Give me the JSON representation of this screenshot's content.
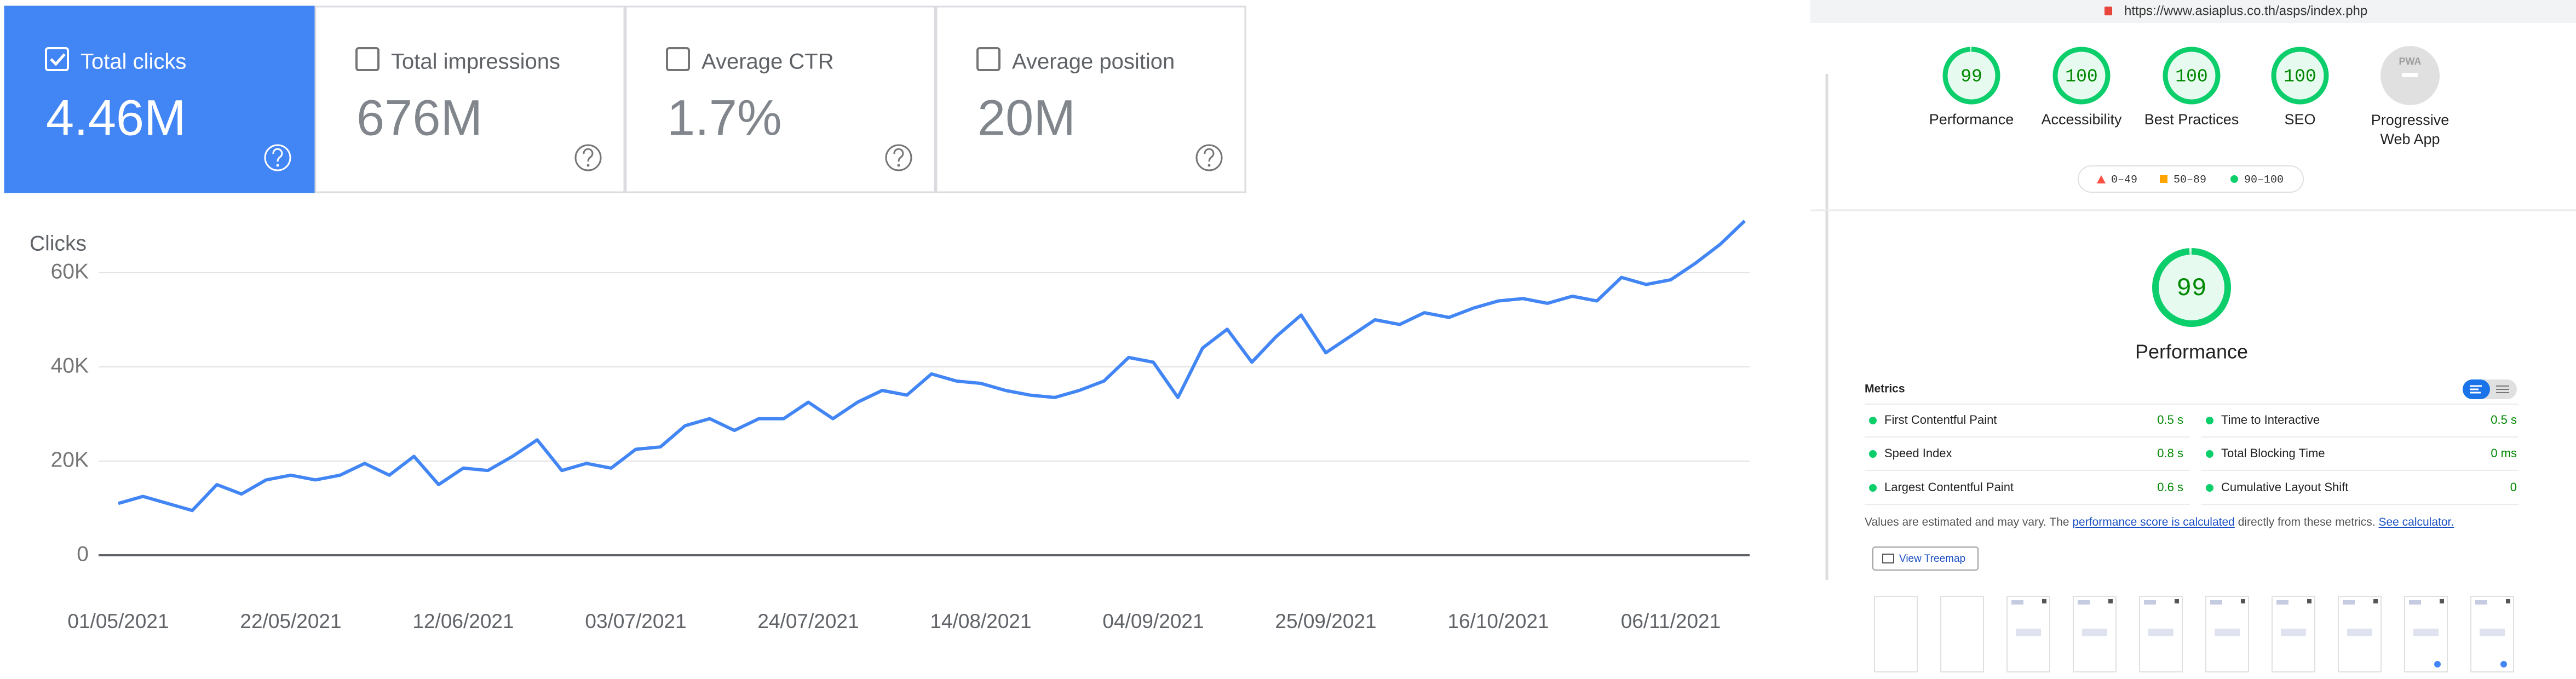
{
  "cards": [
    {
      "label": "Total clicks",
      "value": "4.46M",
      "selected": true
    },
    {
      "label": "Total impressions",
      "value": "676M",
      "selected": false
    },
    {
      "label": "Average CTR",
      "value": "1.7%",
      "selected": false
    },
    {
      "label": "Average position",
      "value": "20M",
      "selected": false
    }
  ],
  "chart": {
    "type": "line",
    "y_label": "Clicks",
    "color": "#4285f4",
    "grid": true,
    "x": [
      "01/05/2021",
      "04/05/2021",
      "07/05/2021",
      "10/05/2021",
      "13/05/2021",
      "16/05/2021",
      "19/05/2021",
      "22/05/2021",
      "25/05/2021",
      "28/05/2021",
      "31/05/2021",
      "03/06/2021",
      "06/06/2021",
      "09/06/2021",
      "12/06/2021",
      "15/06/2021",
      "18/06/2021",
      "21/06/2021",
      "24/06/2021",
      "27/06/2021",
      "30/06/2021",
      "03/07/2021",
      "06/07/2021",
      "09/07/2021",
      "12/07/2021",
      "15/07/2021",
      "18/07/2021",
      "21/07/2021",
      "24/07/2021",
      "27/07/2021",
      "30/07/2021",
      "02/08/2021",
      "05/08/2021",
      "08/08/2021",
      "11/08/2021",
      "14/08/2021",
      "17/08/2021",
      "20/08/2021",
      "23/08/2021",
      "26/08/2021",
      "29/08/2021",
      "01/09/2021",
      "04/09/2021",
      "07/09/2021",
      "10/09/2021",
      "13/09/2021",
      "16/09/2021",
      "19/09/2021",
      "22/09/2021",
      "25/09/2021",
      "28/09/2021",
      "01/10/2021",
      "04/10/2021",
      "07/10/2021",
      "10/10/2021",
      "13/10/2021",
      "16/10/2021",
      "19/10/2021",
      "22/10/2021",
      "25/10/2021",
      "28/10/2021",
      "31/10/2021",
      "03/11/2021",
      "06/11/2021",
      "09/11/2021",
      "12/11/2021",
      "15/11/2021"
    ],
    "values": [
      11000,
      12500,
      11000,
      9500,
      15000,
      13000,
      16000,
      17000,
      16000,
      17000,
      19500,
      17000,
      21000,
      15000,
      18500,
      18000,
      21000,
      24500,
      18000,
      19500,
      18500,
      22500,
      23000,
      27500,
      29000,
      26500,
      29000,
      29000,
      32500,
      29000,
      32500,
      35000,
      34000,
      38500,
      37000,
      36500,
      35000,
      34000,
      33500,
      35000,
      37000,
      42000,
      41000,
      33500,
      44000,
      48000,
      41000,
      46500,
      51000,
      43000,
      46500,
      50000,
      49000,
      51500,
      50500,
      52500,
      54000,
      54500,
      53500,
      55000,
      54000,
      59000,
      57500,
      58500,
      62000,
      66000,
      71000
    ],
    "ylim": [
      0,
      75000
    ],
    "yticks": [
      0,
      {
        "value": 20000,
        "label": "20K"
      },
      {
        "value": 40000,
        "label": "40K"
      },
      {
        "value": 60000,
        "label": "60K"
      }
    ],
    "xticks": [
      "01/05/2021",
      "22/05/2021",
      "12/06/2021",
      "03/07/2021",
      "24/07/2021",
      "14/08/2021",
      "04/09/2021",
      "25/09/2021",
      "16/10/2021",
      "06/11/2021"
    ]
  },
  "lighthouse": {
    "url": "https://www.asiaplus.co.th/asps/index.php",
    "categories": [
      {
        "label": "Performance",
        "score": 99
      },
      {
        "label": "Accessibility",
        "score": 100
      },
      {
        "label": "Best Practices",
        "score": 100
      },
      {
        "label": "SEO",
        "score": 100
      }
    ],
    "pwa": {
      "badge": "PWA",
      "label": "Progressive Web App"
    },
    "legend": [
      {
        "label": "0–49",
        "color": "#ff4e42"
      },
      {
        "label": "50–89",
        "color": "#ffa400"
      },
      {
        "label": "90–100",
        "color": "#0cce6b"
      }
    ],
    "focus": {
      "score": 99,
      "label": "Performance"
    },
    "metrics_title": "Metrics",
    "metrics": [
      {
        "label": "First Contentful Paint",
        "value": "0.5 s"
      },
      {
        "label": "Time to Interactive",
        "value": "0.5 s"
      },
      {
        "label": "Speed Index",
        "value": "0.8 s"
      },
      {
        "label": "Total Blocking Time",
        "value": "0 ms"
      },
      {
        "label": "Largest Contentful Paint",
        "value": "0.6 s"
      },
      {
        "label": "Cumulative Layout Shift",
        "value": "0"
      }
    ],
    "note": {
      "before": "Values are estimated and may vary. The",
      "link": "performance score is calculated",
      "middle": "directly from these metrics.",
      "link2": "See calculator."
    },
    "button": "View Treemap"
  }
}
